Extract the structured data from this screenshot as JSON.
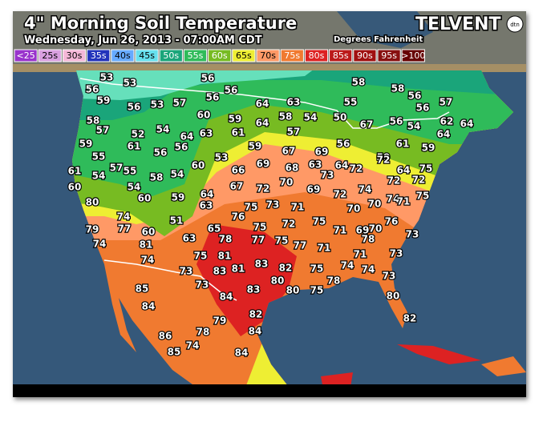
{
  "header": {
    "title": "4\" Morning Soil Temperature",
    "subtitle": "Wednesday, Jun 26, 2013 - 07:00AM CDT",
    "units": "Degrees Fahrenheit",
    "brand": "TELVENT",
    "brand_badge": "dtn"
  },
  "legend": [
    {
      "label": "<25",
      "color": "#9933cc"
    },
    {
      "label": "25s",
      "color": "#d9a0e0"
    },
    {
      "label": "30s",
      "color": "#f5b8d8"
    },
    {
      "label": "35s",
      "color": "#2233bb"
    },
    {
      "label": "40s",
      "color": "#66aaff"
    },
    {
      "label": "45s",
      "color": "#66e0ee"
    },
    {
      "label": "50s",
      "color": "#1aa57a"
    },
    {
      "label": "55s",
      "color": "#2fbb5a"
    },
    {
      "label": "60s",
      "color": "#77bb22"
    },
    {
      "label": "65s",
      "color": "#eeee33"
    },
    {
      "label": "70s",
      "color": "#ff9966"
    },
    {
      "label": "75s",
      "color": "#f07a30"
    },
    {
      "label": "80s",
      "color": "#dd2222"
    },
    {
      "label": "85s",
      "color": "#bb1a1a"
    },
    {
      "label": "90s",
      "color": "#a01010"
    },
    {
      "label": "95s",
      "color": "#881010"
    },
    {
      "label": ">100",
      "color": "#660000"
    }
  ],
  "stations": [
    53,
    53,
    56,
    56,
    56,
    58,
    58,
    56,
    57,
    56,
    59,
    56,
    53,
    57,
    64,
    63,
    55,
    56,
    58,
    57,
    52,
    54,
    60,
    59,
    64,
    58,
    54,
    50,
    56,
    54,
    62,
    64,
    59,
    61,
    64,
    63,
    61,
    57,
    67,
    61,
    64,
    55,
    56,
    56,
    53,
    59,
    67,
    69,
    56,
    59,
    59,
    61,
    54,
    57,
    55,
    58,
    54,
    60,
    66,
    69,
    68,
    63,
    73,
    64,
    72,
    64,
    75,
    72,
    60,
    54,
    67,
    72,
    70,
    69,
    72,
    74,
    72,
    72,
    80,
    60,
    59,
    64,
    63,
    74,
    71,
    75,
    74,
    76,
    75,
    73,
    71,
    70,
    70,
    75,
    79,
    77,
    60,
    51,
    65,
    75,
    72,
    71,
    69,
    70,
    76,
    74,
    81,
    63,
    78,
    77,
    75,
    77,
    71,
    73,
    74,
    75,
    81,
    83,
    78,
    73,
    83,
    81,
    82,
    75,
    74,
    71,
    74,
    73,
    73,
    73,
    80,
    80,
    75,
    78,
    85,
    84,
    84,
    83,
    80,
    79,
    82,
    82,
    86,
    78,
    84,
    85,
    74,
    84
  ]
}
